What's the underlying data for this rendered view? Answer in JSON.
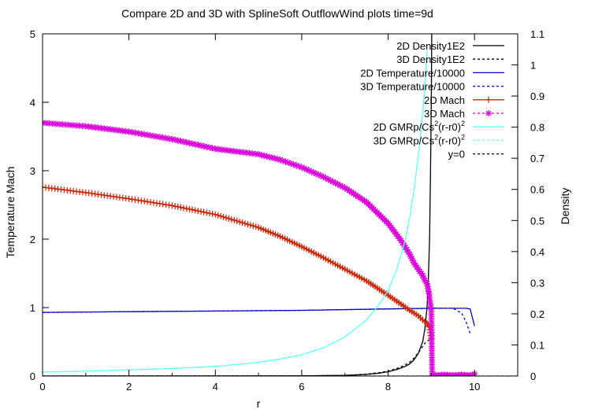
{
  "chart_data": {
    "type": "line",
    "title": "Compare 2D and 3D with SplineSoft OutflowWind plots time=9d",
    "xlabel": "r",
    "ylabel_left": "Temperature  Mach",
    "ylabel_right": "Density",
    "xlim": [
      0,
      11
    ],
    "ylim_left": [
      0,
      5
    ],
    "ylim_right": [
      0,
      1.1
    ],
    "x_ticks": [
      "0",
      "2",
      "4",
      "6",
      "8",
      "10"
    ],
    "x_tick_values": [
      0,
      2,
      4,
      6,
      8,
      10
    ],
    "y_left_ticks": [
      "0",
      "1",
      "2",
      "3",
      "4",
      "5"
    ],
    "y_left_tick_values": [
      0,
      1,
      2,
      3,
      4,
      5
    ],
    "y_right_ticks": [
      "0",
      "0.1",
      "0.2",
      "0.3",
      "0.4",
      "0.5",
      "0.6",
      "0.7",
      "0.8",
      "0.9",
      "1",
      "1.1"
    ],
    "y_right_tick_values": [
      0,
      0.1,
      0.2,
      0.3,
      0.4,
      0.5,
      0.6,
      0.7,
      0.8,
      0.9,
      1.0,
      1.1
    ],
    "legend_position": "top-right",
    "grid": false,
    "series": [
      {
        "name": "2D Density1E2",
        "axis": "right",
        "color": "#000000",
        "dash": "solid",
        "marker": "none",
        "x": [
          0,
          6.0,
          7.0,
          7.5,
          7.8,
          8.0,
          8.2,
          8.4,
          8.5,
          8.6,
          8.7,
          8.8,
          8.85,
          8.9,
          8.93,
          8.96,
          8.98,
          9.0,
          9.01
        ],
        "y": [
          0.0,
          0.0005,
          0.002,
          0.005,
          0.009,
          0.014,
          0.021,
          0.031,
          0.039,
          0.052,
          0.073,
          0.11,
          0.15,
          0.22,
          0.3,
          0.45,
          0.65,
          0.9,
          1.1
        ]
      },
      {
        "name": "3D Density1E2",
        "axis": "right",
        "color": "#000000",
        "dash": "dot",
        "marker": "none",
        "x": [
          0,
          6.0,
          7.0,
          7.5,
          7.8,
          8.0,
          8.2,
          8.4,
          8.5,
          8.6,
          8.7,
          8.8,
          8.85,
          8.9,
          8.95,
          9.0,
          9.02
        ],
        "y": [
          0.0,
          0.0006,
          0.002,
          0.006,
          0.011,
          0.016,
          0.024,
          0.036,
          0.045,
          0.058,
          0.075,
          0.095,
          0.105,
          0.112,
          0.116,
          0.12,
          0.12
        ]
      },
      {
        "name": "2D Temperature/10000",
        "axis": "left",
        "color": "#0000cc",
        "dash": "solid",
        "marker": "none",
        "x": [
          0,
          2,
          4,
          6,
          8,
          9,
          9.8,
          9.9,
          10.0
        ],
        "y": [
          0.93,
          0.94,
          0.95,
          0.96,
          0.98,
          0.99,
          0.99,
          0.98,
          0.73
        ]
      },
      {
        "name": "3D Temperature/10000",
        "axis": "left",
        "color": "#0000cc",
        "dash": "dot",
        "marker": "none",
        "x": [
          0,
          2,
          4,
          6,
          8,
          9,
          9.5,
          9.7,
          9.8,
          9.9
        ],
        "y": [
          0.93,
          0.94,
          0.95,
          0.96,
          0.98,
          0.99,
          0.99,
          0.92,
          0.8,
          0.62
        ]
      },
      {
        "name": "2D Mach",
        "axis": "left",
        "color": "#cc2200",
        "dash": "solid",
        "marker": "plus",
        "x": [
          0,
          1,
          2,
          3,
          4,
          5,
          5.5,
          6.0,
          6.5,
          7.0,
          7.5,
          8.0,
          8.3,
          8.5,
          8.7,
          8.8,
          8.9,
          8.95,
          9.0
        ],
        "y": [
          2.76,
          2.68,
          2.59,
          2.49,
          2.36,
          2.17,
          2.04,
          1.89,
          1.73,
          1.56,
          1.39,
          1.18,
          1.05,
          0.96,
          0.88,
          0.82,
          0.77,
          0.72,
          0.55
        ]
      },
      {
        "name": "3D Mach",
        "axis": "left",
        "color": "#dd00dd",
        "dash": "dot",
        "marker": "star",
        "x": [
          0,
          1,
          2,
          3,
          4,
          5,
          5.5,
          6.0,
          6.5,
          7.0,
          7.5,
          8.0,
          8.3,
          8.5,
          8.6,
          8.7,
          8.8,
          8.85,
          8.9,
          8.95,
          9.0,
          9.02,
          9.05,
          9.1,
          9.3,
          9.5,
          9.7,
          9.9,
          10.0
        ],
        "y": [
          3.7,
          3.65,
          3.57,
          3.46,
          3.32,
          3.24,
          3.16,
          3.05,
          2.91,
          2.75,
          2.54,
          2.23,
          1.98,
          1.78,
          1.65,
          1.56,
          1.47,
          1.4,
          1.35,
          1.2,
          0.95,
          0.01,
          0.02,
          0.01,
          0.02,
          0.01,
          0.02,
          0.01,
          0.03
        ]
      },
      {
        "name": "2D GMRp/Cs^2(r-r0)^2",
        "axis": "left",
        "color": "#66ffff",
        "dash": "solid",
        "marker": "none",
        "x": [
          0,
          1,
          2,
          3,
          4,
          5,
          5.5,
          6.0,
          6.5,
          7.0,
          7.5,
          7.8,
          8.0,
          8.2,
          8.4,
          8.5,
          8.6,
          8.7,
          8.75,
          8.8,
          8.85,
          8.9
        ],
        "y": [
          0.06,
          0.07,
          0.09,
          0.11,
          0.14,
          0.2,
          0.25,
          0.31,
          0.41,
          0.57,
          0.82,
          1.05,
          1.25,
          1.55,
          2.0,
          2.32,
          2.72,
          3.22,
          3.52,
          3.85,
          4.2,
          4.75
        ]
      },
      {
        "name": "3D GMRp/Cs^2(r-r0)^2",
        "axis": "left",
        "color": "#66ffff",
        "dash": "dot",
        "marker": "none",
        "x": [
          0,
          1,
          2,
          3,
          4,
          5,
          5.5,
          6.0,
          6.5,
          7.0,
          7.5,
          7.8,
          8.0,
          8.2,
          8.4,
          8.5,
          8.6,
          8.7,
          8.75,
          8.8,
          8.85,
          8.9
        ],
        "y": [
          0.06,
          0.07,
          0.09,
          0.11,
          0.14,
          0.2,
          0.25,
          0.31,
          0.41,
          0.57,
          0.82,
          1.05,
          1.25,
          1.55,
          2.0,
          2.32,
          2.72,
          3.22,
          3.52,
          3.85,
          4.2,
          4.75
        ]
      },
      {
        "name": "y=0",
        "axis": "left",
        "color": "#000000",
        "dash": "dot",
        "marker": "none",
        "x": [
          0,
          11
        ],
        "y": [
          0,
          0
        ]
      }
    ]
  },
  "legend": {
    "entries": [
      {
        "text": "2D Density1E2",
        "sup": ""
      },
      {
        "text": "3D Density1E2",
        "sup": ""
      },
      {
        "text": "2D Temperature/10000",
        "sup": ""
      },
      {
        "text": "3D Temperature/10000",
        "sup": ""
      },
      {
        "text": "2D Mach",
        "sup": ""
      },
      {
        "text": "3D Mach",
        "sup": ""
      },
      {
        "text": "2D GMRp/Cs",
        "sup": "2",
        "tail": "(r-r0)",
        "sup2": "2"
      },
      {
        "text": "3D GMRp/Cs",
        "sup": "2",
        "tail": "(r-r0)",
        "sup2": "2"
      },
      {
        "text": "y=0",
        "sup": ""
      }
    ]
  }
}
